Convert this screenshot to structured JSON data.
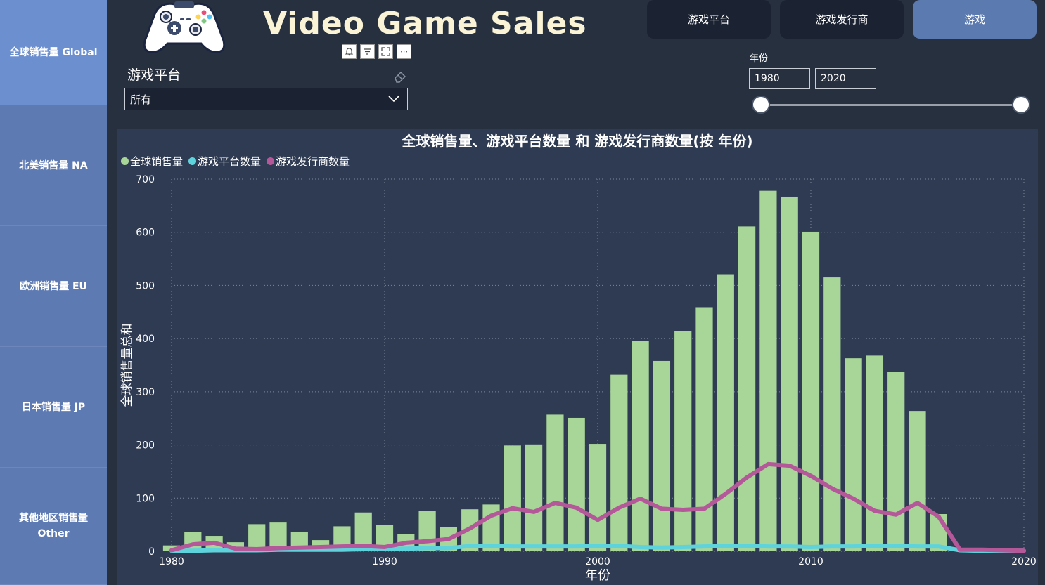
{
  "app": {
    "title": "Video Game Sales"
  },
  "sidebar": {
    "items": [
      {
        "label": "全球销售量 Global",
        "active": true
      },
      {
        "label": "北美销售量 NA",
        "active": false
      },
      {
        "label": "欧洲销售量 EU",
        "active": false
      },
      {
        "label": "日本销售量 JP",
        "active": false
      },
      {
        "label": "其他地区销售量 Other",
        "active": false
      }
    ]
  },
  "nav": {
    "buttons": [
      {
        "label": "游戏平台",
        "active": false
      },
      {
        "label": "游戏发行商",
        "active": false
      },
      {
        "label": "游戏",
        "active": true
      }
    ]
  },
  "visual_icons": [
    "bell-icon",
    "filter-icon",
    "focus-mode-icon",
    "more-options-icon"
  ],
  "platform_slicer": {
    "label": "游戏平台",
    "value": "所有"
  },
  "year_slicer": {
    "label": "年份",
    "start": "1980",
    "end": "2020"
  },
  "colors": {
    "global_sales": "#a8d598",
    "platform_count": "#5fd3dc",
    "publisher_count": "#b5589a",
    "panel_bg": "#2f3b52"
  },
  "chart_data": {
    "type": "bar",
    "title": "全球销售量、游戏平台数量 和 游戏发行商数量(按 年份)",
    "xlabel": "年份",
    "ylabel": "全球销售量总和",
    "ylim": [
      0,
      700
    ],
    "yticks": [
      "0",
      "100",
      "200",
      "300",
      "400",
      "500",
      "600",
      "700"
    ],
    "xticks": [
      "1980",
      "1990",
      "2000",
      "2010",
      "2020"
    ],
    "xlim": [
      1980,
      2020
    ],
    "grid": true,
    "legend_position": "top-left",
    "x": [
      1980,
      1981,
      1982,
      1983,
      1984,
      1985,
      1986,
      1987,
      1988,
      1989,
      1990,
      1991,
      1992,
      1993,
      1994,
      1995,
      1996,
      1997,
      1998,
      1999,
      2000,
      2001,
      2002,
      2003,
      2004,
      2005,
      2006,
      2007,
      2008,
      2009,
      2010,
      2011,
      2012,
      2013,
      2014,
      2015,
      2016,
      2017,
      2018,
      2019,
      2020
    ],
    "series": [
      {
        "name": "全球销售量",
        "kind": "bar",
        "values": [
          11,
          36,
          29,
          17,
          51,
          54,
          37,
          21,
          47,
          73,
          50,
          32,
          76,
          46,
          79,
          88,
          199,
          201,
          257,
          251,
          202,
          332,
          395,
          358,
          414,
          459,
          521,
          611,
          678,
          667,
          601,
          515,
          363,
          368,
          337,
          264,
          70,
          0.1,
          0.1,
          0,
          0.3
        ]
      },
      {
        "name": "游戏平台数量",
        "kind": "line",
        "values": [
          1,
          1,
          2,
          2,
          2,
          3,
          3,
          3,
          3,
          4,
          4,
          5,
          6,
          6,
          10,
          10,
          9,
          9,
          9,
          9,
          10,
          10,
          8,
          7,
          8,
          9,
          10,
          10,
          9,
          9,
          8,
          9,
          9,
          10,
          10,
          9,
          9,
          2,
          1,
          1,
          1
        ]
      },
      {
        "name": "游戏发行商数量",
        "kind": "line",
        "values": [
          2,
          13,
          16,
          5,
          4,
          6,
          7,
          8,
          9,
          10,
          8,
          16,
          19,
          23,
          43,
          67,
          81,
          74,
          91,
          82,
          59,
          82,
          99,
          80,
          78,
          80,
          108,
          139,
          164,
          161,
          142,
          118,
          99,
          76,
          69,
          91,
          65,
          3,
          3,
          2,
          1
        ]
      }
    ]
  }
}
